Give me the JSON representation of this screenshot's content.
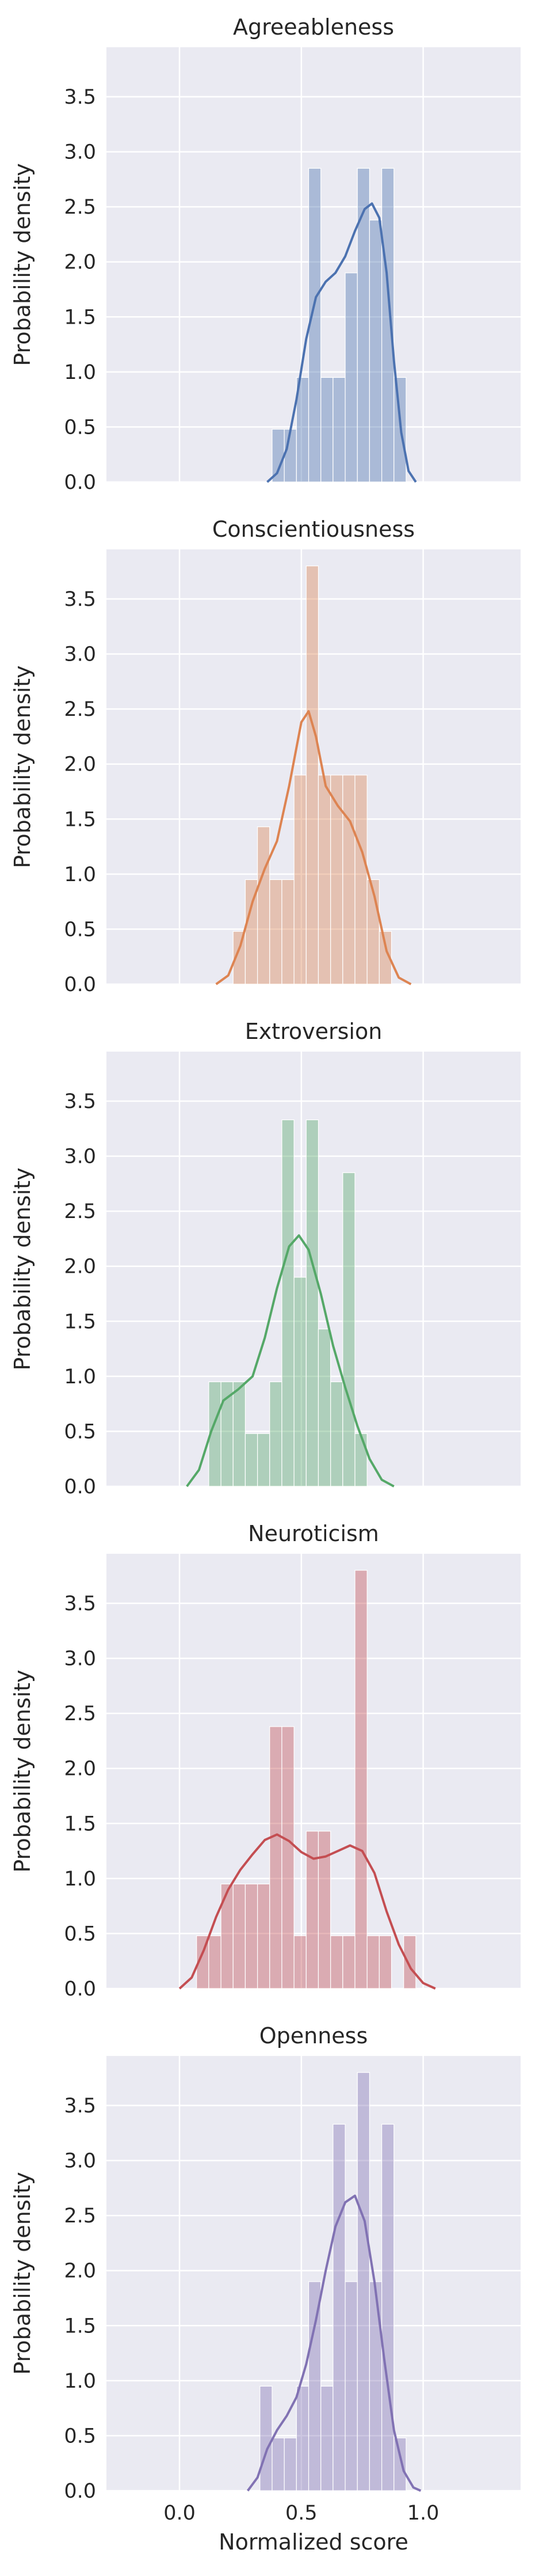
{
  "chart_data": {
    "type": "histogram-kde",
    "xlabel": "Normalized score",
    "ylabel": "Probability density",
    "xlim": [
      -0.3,
      1.4
    ],
    "ylim": [
      0,
      3.95
    ],
    "xticks": [
      0.0,
      0.5,
      1.0
    ],
    "xtick_labels": [
      "0.0",
      "0.5",
      "1.0"
    ],
    "yticks": [
      0.0,
      0.5,
      1.0,
      1.5,
      2.0,
      2.5,
      3.0,
      3.5
    ],
    "ytick_labels": [
      "0.0",
      "0.5",
      "1.0",
      "1.5",
      "2.0",
      "2.5",
      "3.0",
      "3.5"
    ],
    "grid": true,
    "bin_width": 0.05,
    "panels": [
      {
        "title": "Agreeableness",
        "color": "#4c72b0",
        "bars": [
          {
            "x0": 0.38,
            "h": 0.48
          },
          {
            "x0": 0.43,
            "h": 0.48
          },
          {
            "x0": 0.48,
            "h": 0.95
          },
          {
            "x0": 0.53,
            "h": 2.85
          },
          {
            "x0": 0.58,
            "h": 0.95
          },
          {
            "x0": 0.63,
            "h": 0.95
          },
          {
            "x0": 0.68,
            "h": 1.9
          },
          {
            "x0": 0.73,
            "h": 2.85
          },
          {
            "x0": 0.78,
            "h": 2.38
          },
          {
            "x0": 0.83,
            "h": 2.85
          },
          {
            "x0": 0.88,
            "h": 0.95
          }
        ],
        "kde": [
          [
            0.36,
            0.0
          ],
          [
            0.4,
            0.08
          ],
          [
            0.44,
            0.3
          ],
          [
            0.48,
            0.75
          ],
          [
            0.52,
            1.3
          ],
          [
            0.56,
            1.68
          ],
          [
            0.6,
            1.82
          ],
          [
            0.64,
            1.9
          ],
          [
            0.68,
            2.05
          ],
          [
            0.72,
            2.28
          ],
          [
            0.76,
            2.48
          ],
          [
            0.79,
            2.53
          ],
          [
            0.82,
            2.4
          ],
          [
            0.85,
            1.9
          ],
          [
            0.88,
            1.1
          ],
          [
            0.91,
            0.45
          ],
          [
            0.94,
            0.1
          ],
          [
            0.97,
            0.0
          ]
        ]
      },
      {
        "title": "Conscientiousness",
        "color": "#dd8452",
        "bars": [
          {
            "x0": 0.22,
            "h": 0.48
          },
          {
            "x0": 0.27,
            "h": 0.95
          },
          {
            "x0": 0.32,
            "h": 1.43
          },
          {
            "x0": 0.37,
            "h": 0.95
          },
          {
            "x0": 0.42,
            "h": 0.95
          },
          {
            "x0": 0.47,
            "h": 1.9
          },
          {
            "x0": 0.52,
            "h": 3.8
          },
          {
            "x0": 0.57,
            "h": 1.9
          },
          {
            "x0": 0.62,
            "h": 1.9
          },
          {
            "x0": 0.67,
            "h": 1.9
          },
          {
            "x0": 0.72,
            "h": 1.9
          },
          {
            "x0": 0.77,
            "h": 0.95
          },
          {
            "x0": 0.82,
            "h": 0.48
          }
        ],
        "kde": [
          [
            0.15,
            0.0
          ],
          [
            0.2,
            0.08
          ],
          [
            0.25,
            0.35
          ],
          [
            0.3,
            0.75
          ],
          [
            0.35,
            1.05
          ],
          [
            0.4,
            1.3
          ],
          [
            0.45,
            1.8
          ],
          [
            0.5,
            2.38
          ],
          [
            0.53,
            2.48
          ],
          [
            0.56,
            2.25
          ],
          [
            0.6,
            1.8
          ],
          [
            0.65,
            1.62
          ],
          [
            0.7,
            1.48
          ],
          [
            0.75,
            1.2
          ],
          [
            0.8,
            0.8
          ],
          [
            0.85,
            0.3
          ],
          [
            0.9,
            0.06
          ],
          [
            0.95,
            0.0
          ]
        ]
      },
      {
        "title": "Extroversion",
        "color": "#55a868",
        "bars": [
          {
            "x0": 0.12,
            "h": 0.95
          },
          {
            "x0": 0.17,
            "h": 0.95
          },
          {
            "x0": 0.22,
            "h": 0.95
          },
          {
            "x0": 0.27,
            "h": 0.48
          },
          {
            "x0": 0.32,
            "h": 0.48
          },
          {
            "x0": 0.37,
            "h": 0.95
          },
          {
            "x0": 0.42,
            "h": 3.33
          },
          {
            "x0": 0.47,
            "h": 1.9
          },
          {
            "x0": 0.52,
            "h": 3.33
          },
          {
            "x0": 0.57,
            "h": 1.43
          },
          {
            "x0": 0.62,
            "h": 0.95
          },
          {
            "x0": 0.67,
            "h": 2.85
          },
          {
            "x0": 0.72,
            "h": 0.48
          }
        ],
        "kde": [
          [
            0.03,
            0.0
          ],
          [
            0.08,
            0.15
          ],
          [
            0.13,
            0.5
          ],
          [
            0.18,
            0.78
          ],
          [
            0.24,
            0.88
          ],
          [
            0.3,
            1.0
          ],
          [
            0.35,
            1.35
          ],
          [
            0.4,
            1.8
          ],
          [
            0.45,
            2.18
          ],
          [
            0.49,
            2.28
          ],
          [
            0.53,
            2.15
          ],
          [
            0.58,
            1.75
          ],
          [
            0.63,
            1.28
          ],
          [
            0.68,
            0.9
          ],
          [
            0.73,
            0.55
          ],
          [
            0.78,
            0.25
          ],
          [
            0.83,
            0.06
          ],
          [
            0.88,
            0.0
          ]
        ]
      },
      {
        "title": "Neuroticism",
        "color": "#c44e52",
        "bars": [
          {
            "x0": 0.07,
            "h": 0.48
          },
          {
            "x0": 0.12,
            "h": 0.48
          },
          {
            "x0": 0.17,
            "h": 0.95
          },
          {
            "x0": 0.22,
            "h": 0.95
          },
          {
            "x0": 0.27,
            "h": 0.95
          },
          {
            "x0": 0.32,
            "h": 0.95
          },
          {
            "x0": 0.37,
            "h": 2.38
          },
          {
            "x0": 0.42,
            "h": 2.38
          },
          {
            "x0": 0.47,
            "h": 0.48
          },
          {
            "x0": 0.52,
            "h": 1.43
          },
          {
            "x0": 0.57,
            "h": 1.43
          },
          {
            "x0": 0.62,
            "h": 0.48
          },
          {
            "x0": 0.67,
            "h": 0.48
          },
          {
            "x0": 0.72,
            "h": 3.8
          },
          {
            "x0": 0.77,
            "h": 0.48
          },
          {
            "x0": 0.82,
            "h": 0.48
          },
          {
            "x0": 0.92,
            "h": 0.48
          }
        ],
        "kde": [
          [
            0.0,
            0.0
          ],
          [
            0.05,
            0.1
          ],
          [
            0.1,
            0.35
          ],
          [
            0.15,
            0.65
          ],
          [
            0.2,
            0.9
          ],
          [
            0.25,
            1.08
          ],
          [
            0.3,
            1.22
          ],
          [
            0.35,
            1.35
          ],
          [
            0.4,
            1.4
          ],
          [
            0.45,
            1.34
          ],
          [
            0.5,
            1.24
          ],
          [
            0.55,
            1.18
          ],
          [
            0.6,
            1.2
          ],
          [
            0.65,
            1.25
          ],
          [
            0.7,
            1.3
          ],
          [
            0.75,
            1.25
          ],
          [
            0.8,
            1.05
          ],
          [
            0.85,
            0.7
          ],
          [
            0.9,
            0.4
          ],
          [
            0.95,
            0.18
          ],
          [
            1.0,
            0.05
          ],
          [
            1.05,
            0.0
          ]
        ]
      },
      {
        "title": "Openness",
        "color": "#8172b3",
        "bars": [
          {
            "x0": 0.33,
            "h": 0.95
          },
          {
            "x0": 0.38,
            "h": 0.48
          },
          {
            "x0": 0.43,
            "h": 0.48
          },
          {
            "x0": 0.48,
            "h": 0.95
          },
          {
            "x0": 0.53,
            "h": 1.9
          },
          {
            "x0": 0.58,
            "h": 0.95
          },
          {
            "x0": 0.63,
            "h": 3.33
          },
          {
            "x0": 0.68,
            "h": 1.9
          },
          {
            "x0": 0.73,
            "h": 3.8
          },
          {
            "x0": 0.78,
            "h": 1.9
          },
          {
            "x0": 0.83,
            "h": 3.33
          },
          {
            "x0": 0.88,
            "h": 0.48
          }
        ],
        "kde": [
          [
            0.28,
            0.0
          ],
          [
            0.32,
            0.12
          ],
          [
            0.36,
            0.38
          ],
          [
            0.4,
            0.55
          ],
          [
            0.44,
            0.68
          ],
          [
            0.48,
            0.85
          ],
          [
            0.52,
            1.15
          ],
          [
            0.56,
            1.55
          ],
          [
            0.6,
            2.0
          ],
          [
            0.64,
            2.4
          ],
          [
            0.68,
            2.62
          ],
          [
            0.72,
            2.68
          ],
          [
            0.76,
            2.45
          ],
          [
            0.8,
            1.9
          ],
          [
            0.84,
            1.2
          ],
          [
            0.88,
            0.55
          ],
          [
            0.92,
            0.18
          ],
          [
            0.96,
            0.03
          ],
          [
            0.99,
            0.0
          ]
        ]
      }
    ]
  }
}
